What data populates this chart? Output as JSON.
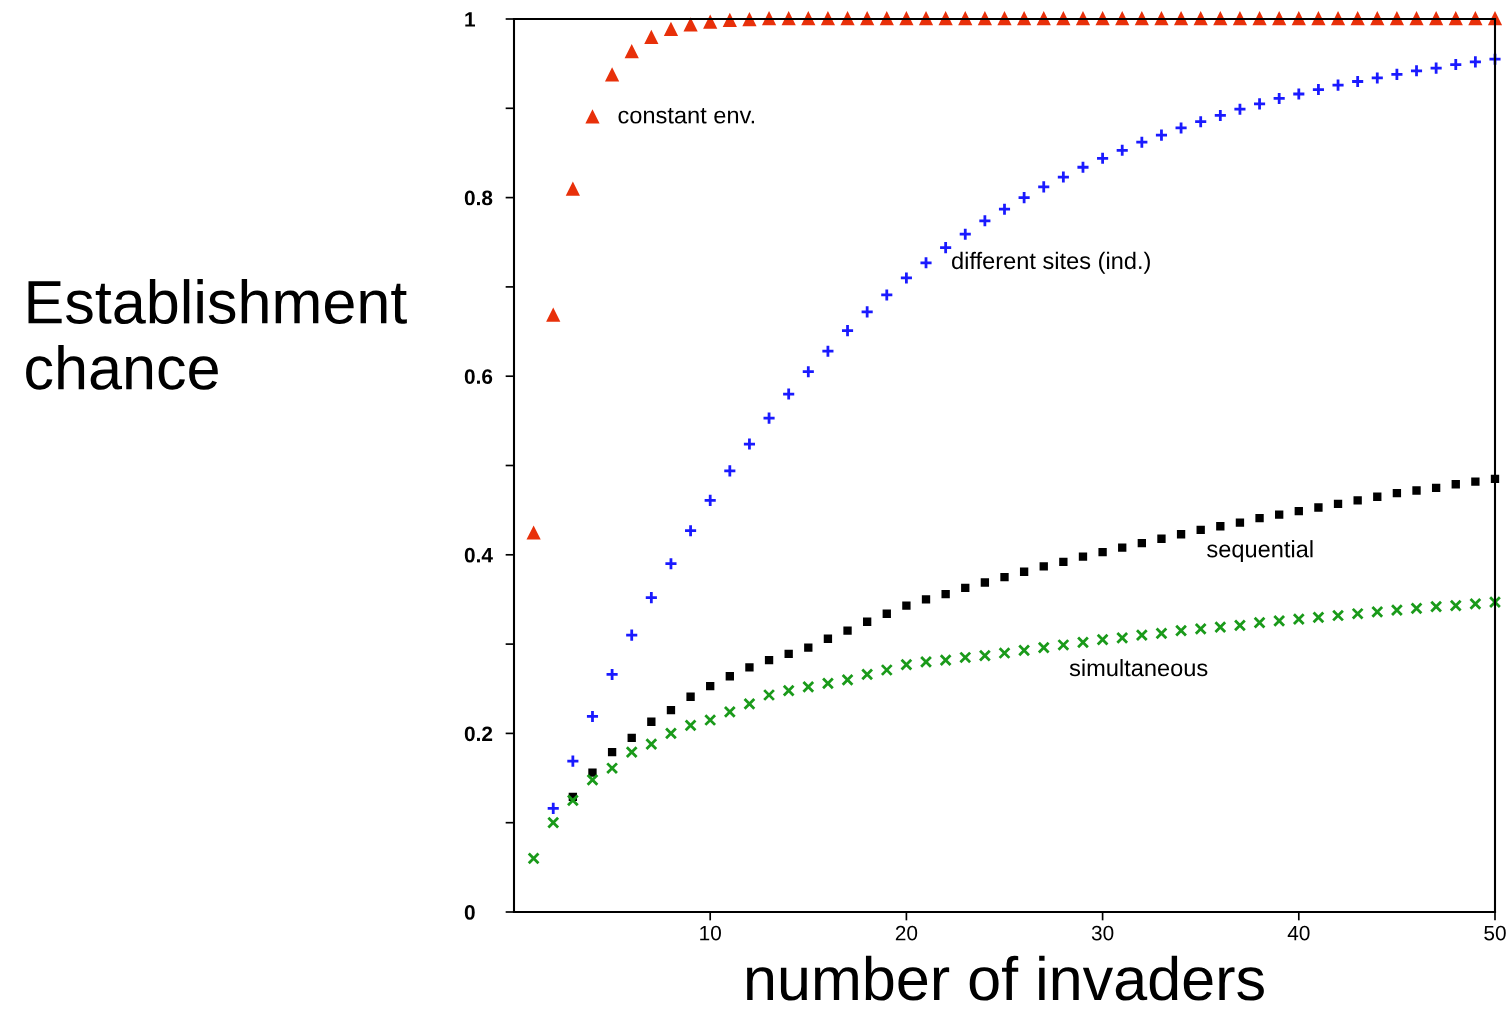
{
  "chart_data": {
    "type": "scatter",
    "xlabel": "number of invaders",
    "ylabel": "Establishment\nchance",
    "x": [
      1,
      2,
      3,
      4,
      5,
      6,
      7,
      8,
      9,
      10,
      11,
      12,
      13,
      14,
      15,
      16,
      17,
      18,
      19,
      20,
      21,
      22,
      23,
      24,
      25,
      26,
      27,
      28,
      29,
      30,
      31,
      32,
      33,
      34,
      35,
      36,
      37,
      38,
      39,
      40,
      41,
      42,
      43,
      44,
      45,
      46,
      47,
      48,
      49,
      50
    ],
    "xlim": [
      0,
      50
    ],
    "xticks": [
      10,
      20,
      30,
      40,
      50
    ],
    "ylim": [
      0,
      1
    ],
    "yticks": [
      {
        "value": 0,
        "label": "0"
      },
      {
        "value": 0.1,
        "label": null
      },
      {
        "value": 0.2,
        "label": "0.2"
      },
      {
        "value": 0.3,
        "label": null
      },
      {
        "value": 0.4,
        "label": "0.4"
      },
      {
        "value": 0.5,
        "label": null
      },
      {
        "value": 0.6,
        "label": "0.6"
      },
      {
        "value": 0.7,
        "label": null
      },
      {
        "value": 0.8,
        "label": "0.8"
      },
      {
        "value": 0.9,
        "label": null
      },
      {
        "value": 1,
        "label": "1"
      }
    ],
    "grid": false,
    "legend": false,
    "series": [
      {
        "name": "constant env.",
        "color": "#e8300a",
        "marker": "triangle",
        "values": [
          0.424,
          0.668,
          0.809,
          0.89,
          0.937,
          0.963,
          0.979,
          0.988,
          0.993,
          0.996,
          0.998,
          0.999,
          1,
          1,
          1,
          1,
          1,
          1,
          1,
          1,
          1,
          1,
          1,
          1,
          1,
          1,
          1,
          1,
          1,
          1,
          1,
          1,
          1,
          1,
          1,
          1,
          1,
          1,
          1,
          1,
          1,
          1,
          1,
          1,
          1,
          1,
          1,
          1,
          1,
          1
        ]
      },
      {
        "name": "different sites (ind.)",
        "color": "#1a1aff",
        "marker": "plus",
        "values": [
          null,
          0.116,
          0.169,
          0.219,
          0.266,
          0.31,
          0.352,
          0.39,
          0.427,
          0.461,
          0.494,
          0.524,
          0.553,
          0.58,
          0.605,
          0.628,
          0.651,
          0.672,
          0.691,
          0.71,
          0.727,
          0.744,
          0.759,
          0.774,
          0.787,
          0.8,
          0.812,
          0.823,
          0.834,
          0.844,
          0.853,
          0.862,
          0.87,
          0.878,
          0.885,
          0.892,
          0.899,
          0.905,
          0.911,
          0.916,
          0.921,
          0.926,
          0.93,
          0.934,
          0.938,
          0.942,
          0.945,
          0.949,
          0.952,
          0.955
        ]
      },
      {
        "name": "sequential",
        "color": "#000000",
        "marker": "square",
        "values": [
          null,
          null,
          0.129,
          0.156,
          0.179,
          0.195,
          0.213,
          0.226,
          0.241,
          0.253,
          0.264,
          0.274,
          0.282,
          0.289,
          0.296,
          0.306,
          0.315,
          0.325,
          0.334,
          0.343,
          0.35,
          0.356,
          0.363,
          0.369,
          0.375,
          0.381,
          0.387,
          0.392,
          0.398,
          0.403,
          0.408,
          0.413,
          0.418,
          0.423,
          0.428,
          0.432,
          0.436,
          0.441,
          0.445,
          0.449,
          0.453,
          0.457,
          0.461,
          0.465,
          0.469,
          0.472,
          0.475,
          0.479,
          0.482,
          0.485
        ]
      },
      {
        "name": "simultaneous",
        "color": "#1a9a1a",
        "marker": "cross",
        "values": [
          0.06,
          0.1,
          0.125,
          0.148,
          0.161,
          0.179,
          0.188,
          0.2,
          0.209,
          0.215,
          0.224,
          0.233,
          0.243,
          0.248,
          0.252,
          0.256,
          0.26,
          0.266,
          0.271,
          0.277,
          0.28,
          0.282,
          0.285,
          0.287,
          0.29,
          0.293,
          0.296,
          0.299,
          0.302,
          0.305,
          0.307,
          0.31,
          0.312,
          0.315,
          0.317,
          0.319,
          0.321,
          0.324,
          0.326,
          0.328,
          0.33,
          0.332,
          0.334,
          0.336,
          0.338,
          0.34,
          0.342,
          0.343,
          0.345,
          0.347
        ]
      }
    ]
  }
}
